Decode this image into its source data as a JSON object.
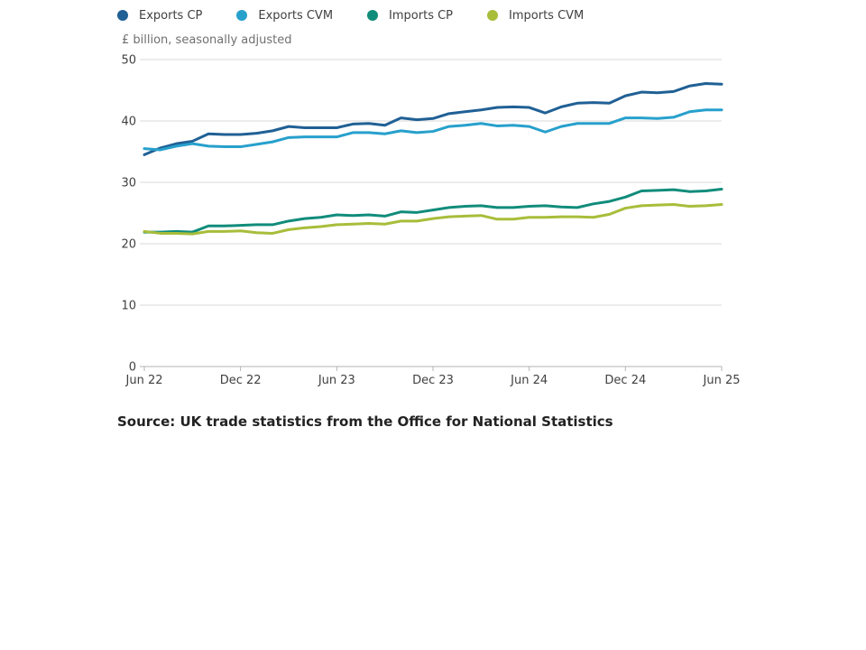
{
  "legend_order": [
    "exports_cp",
    "exports_cvm",
    "imports_cp",
    "imports_cvm"
  ],
  "unit_label": "£ billion, seasonally adjusted",
  "source": "Source: UK trade statistics from the Office for National Statistics",
  "chart_data": {
    "type": "line",
    "title": "",
    "xlabel": "",
    "ylabel": "£ billion, seasonally adjusted",
    "ylim": [
      0,
      50
    ],
    "yticks": [
      0,
      10,
      20,
      30,
      40,
      50
    ],
    "grid": true,
    "legend_position": "top-left",
    "x": [
      "Jun 22",
      "Jul 22",
      "Aug 22",
      "Sep 22",
      "Oct 22",
      "Nov 22",
      "Dec 22",
      "Jan 23",
      "Feb 23",
      "Mar 23",
      "Apr 23",
      "May 23",
      "Jun 23",
      "Jul 23",
      "Aug 23",
      "Sep 23",
      "Oct 23",
      "Nov 23",
      "Dec 23",
      "Jan 24",
      "Feb 24",
      "Mar 24",
      "Apr 24",
      "May 24",
      "Jun 24",
      "Jul 24",
      "Aug 24",
      "Sep 24",
      "Oct 24",
      "Nov 24",
      "Dec 24",
      "Jan 25",
      "Feb 25",
      "Mar 25",
      "Apr 25",
      "May 25",
      "Jun 25"
    ],
    "xtick_labels": [
      "Jun 22",
      "Dec 22",
      "Jun 23",
      "Dec 23",
      "Jun 24",
      "Dec 24",
      "Jun 25"
    ],
    "xtick_indices": [
      0,
      6,
      12,
      18,
      24,
      30,
      36
    ],
    "series": [
      {
        "key": "exports_cp",
        "name": "Exports CP",
        "color": "#206095",
        "values": [
          34.5,
          35.6,
          36.3,
          36.7,
          37.9,
          37.8,
          37.8,
          38.0,
          38.4,
          39.1,
          38.9,
          38.9,
          38.9,
          39.5,
          39.6,
          39.3,
          40.5,
          40.2,
          40.4,
          41.2,
          41.5,
          41.8,
          42.2,
          42.3,
          42.2,
          41.3,
          42.3,
          42.9,
          43.0,
          42.9,
          44.1,
          44.7,
          44.6,
          44.8,
          45.7,
          46.1,
          46.0
        ]
      },
      {
        "key": "exports_cvm",
        "name": "Exports CVM",
        "color": "#27a0cc",
        "values": [
          35.5,
          35.3,
          35.9,
          36.3,
          35.9,
          35.8,
          35.8,
          36.2,
          36.6,
          37.3,
          37.4,
          37.4,
          37.4,
          38.1,
          38.1,
          37.9,
          38.4,
          38.1,
          38.3,
          39.1,
          39.3,
          39.6,
          39.2,
          39.3,
          39.1,
          38.2,
          39.1,
          39.6,
          39.6,
          39.6,
          40.5,
          40.5,
          40.4,
          40.6,
          41.5,
          41.8,
          41.8
        ]
      },
      {
        "key": "imports_cp",
        "name": "Imports CP",
        "color": "#118c7b",
        "values": [
          21.9,
          21.9,
          22.0,
          21.9,
          22.9,
          22.9,
          23.0,
          23.1,
          23.1,
          23.7,
          24.1,
          24.3,
          24.7,
          24.6,
          24.7,
          24.5,
          25.2,
          25.1,
          25.5,
          25.9,
          26.1,
          26.2,
          25.9,
          25.9,
          26.1,
          26.2,
          26.0,
          25.9,
          26.5,
          26.9,
          27.6,
          28.6,
          28.7,
          28.8,
          28.5,
          28.6,
          28.9
        ]
      },
      {
        "key": "imports_cvm",
        "name": "Imports CVM",
        "color": "#a8bd3a",
        "values": [
          22.0,
          21.7,
          21.7,
          21.6,
          22.0,
          22.0,
          22.1,
          21.8,
          21.7,
          22.3,
          22.6,
          22.8,
          23.1,
          23.2,
          23.3,
          23.2,
          23.7,
          23.7,
          24.1,
          24.4,
          24.5,
          24.6,
          24.0,
          24.0,
          24.3,
          24.3,
          24.4,
          24.4,
          24.3,
          24.8,
          25.8,
          26.2,
          26.3,
          26.4,
          26.1,
          26.2,
          26.4
        ]
      }
    ]
  }
}
